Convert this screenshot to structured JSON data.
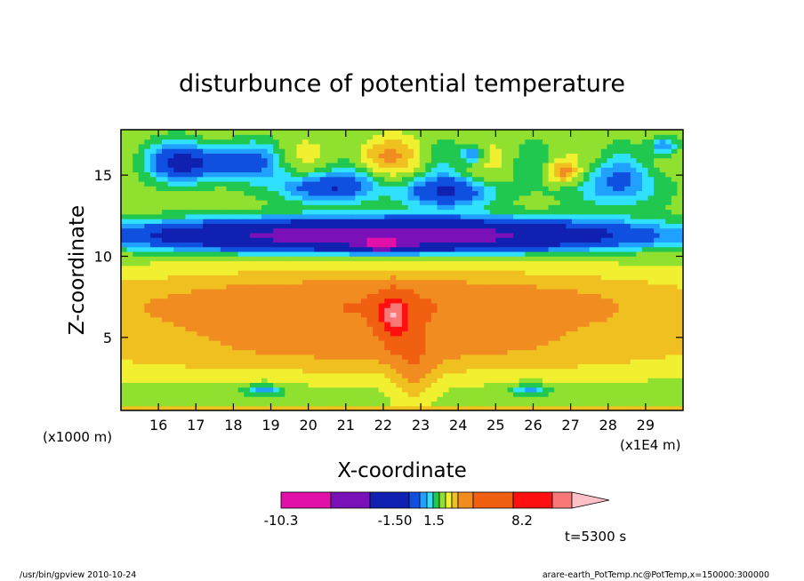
{
  "chart_data": {
    "type": "heatmap",
    "subtype": "filled-contour",
    "title": "disturbunce of potential temperature",
    "xlabel": "X-coordinate",
    "ylabel": "Z-coordinate",
    "x_unit_label": "(x1E4 m)",
    "y_unit_label": "(x1000 m)",
    "xlim": [
      15.0,
      30.0
    ],
    "ylim": [
      0.5,
      17.8
    ],
    "x_ticks": [
      16,
      17,
      18,
      19,
      20,
      21,
      22,
      23,
      24,
      25,
      26,
      27,
      28,
      29
    ],
    "y_ticks": [
      5,
      10,
      15
    ],
    "grid": false,
    "colorbar": {
      "orientation": "horizontal",
      "position": "bottom",
      "tick_labels": [
        "-10.3",
        "-1.50",
        "1.5",
        "8.2"
      ],
      "colors": [
        "#e010a8",
        "#7a10b8",
        "#1020b0",
        "#1050e0",
        "#20a0ff",
        "#30e0ff",
        "#20c850",
        "#90e030",
        "#f0f030",
        "#f0c020",
        "#f08c20",
        "#f06010",
        "#ff1010",
        "#f87878",
        "#ffc0c8"
      ]
    },
    "annotation": "t=5300 s",
    "field_sketch": {
      "ranges": {
        "very_negative": [
          -10.3,
          -6
        ],
        "negative": [
          -6,
          -1.5
        ],
        "near_zero": [
          -1.5,
          1.5
        ],
        "positive": [
          1.5,
          6
        ],
        "very_positive": [
          6,
          8.2
        ]
      },
      "features": [
        {
          "name": "upper negative band",
          "x": [
            16,
            29
          ],
          "z": [
            10.5,
            12.5
          ],
          "value": -6
        },
        {
          "name": "tropopause minimum",
          "x": 22.0,
          "z": 10.8,
          "value": -10.3
        },
        {
          "name": "mid-level warm layer",
          "x": [
            16,
            29
          ],
          "z": [
            5,
            9
          ],
          "value": 4
        },
        {
          "name": "warm core",
          "x": 22.3,
          "z": 6.5,
          "value": 8.2
        },
        {
          "name": "upper-right warm cell",
          "x": 26.8,
          "z": 15.2,
          "value": 4
        }
      ]
    }
  },
  "footer": {
    "left": "/usr/bin/gpview   2010-10-24",
    "right": "arare-earth_PotTemp.nc@PotTemp,x=150000:300000"
  }
}
